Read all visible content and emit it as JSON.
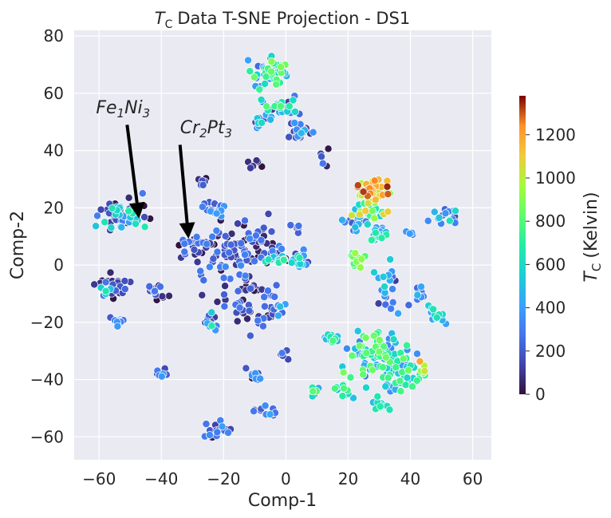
{
  "chart_data": {
    "type": "scatter",
    "title": {
      "main": "Data T-SNE Projection - DS1",
      "symbol": "T",
      "subscript": "C"
    },
    "xlabel": "Comp-1",
    "ylabel": "Comp-2",
    "xlim": [
      -68,
      66
    ],
    "ylim": [
      -68,
      82
    ],
    "xticks": [
      -60,
      -40,
      -20,
      0,
      20,
      40,
      60
    ],
    "yticks": [
      -60,
      -40,
      -20,
      0,
      20,
      40,
      60,
      80
    ],
    "grid": true,
    "background": "#eaeaf2",
    "colormap": "turbo",
    "colorbar": {
      "label": {
        "symbol": "T",
        "subscript": "C",
        "text": "(Kelvin)"
      },
      "min": 0,
      "max": 1380,
      "ticks": [
        0,
        200,
        400,
        600,
        800,
        1000,
        1200
      ]
    },
    "annotations": [
      {
        "name": "fe1ni3",
        "parts": [
          [
            "Fe",
            false
          ],
          [
            "1",
            true
          ],
          [
            "Ni",
            false
          ],
          [
            "3",
            true
          ]
        ],
        "text_pos": [
          -61,
          53
        ],
        "arrow_from": [
          -51,
          49
        ],
        "arrow_to": [
          -47.5,
          19
        ]
      },
      {
        "name": "cr2pt3",
        "parts": [
          [
            "Cr",
            false
          ],
          [
            "2",
            true
          ],
          [
            "Pt",
            false
          ],
          [
            "3",
            true
          ]
        ],
        "text_pos": [
          -34,
          46
        ],
        "arrow_from": [
          -34,
          42
        ],
        "arrow_to": [
          -31.5,
          12
        ]
      }
    ],
    "clusters": [
      {
        "cx": -5,
        "cy": 67,
        "rx": 7,
        "ry": 5,
        "n": 55,
        "tmin": 200,
        "tmax": 900
      },
      {
        "cx": -2,
        "cy": 55,
        "rx": 6,
        "ry": 4,
        "n": 25,
        "tmin": 100,
        "tmax": 800
      },
      {
        "cx": 4,
        "cy": 46,
        "rx": 4,
        "ry": 4,
        "n": 25,
        "tmin": 0,
        "tmax": 500
      },
      {
        "cx": -8,
        "cy": 50,
        "rx": 4,
        "ry": 3,
        "n": 12,
        "tmin": 0,
        "tmax": 600
      },
      {
        "cx": -52,
        "cy": 18,
        "rx": 8,
        "ry": 6,
        "n": 60,
        "tmin": 0,
        "tmax": 700
      },
      {
        "cx": -27,
        "cy": 29,
        "rx": 2,
        "ry": 2,
        "n": 8,
        "tmin": 0,
        "tmax": 300
      },
      {
        "cx": -23,
        "cy": 20,
        "rx": 4,
        "ry": 3,
        "n": 18,
        "tmin": 200,
        "tmax": 400
      },
      {
        "cx": -30,
        "cy": 7,
        "rx": 5,
        "ry": 5,
        "n": 20,
        "tmin": 0,
        "tmax": 300
      },
      {
        "cx": -15,
        "cy": 5,
        "rx": 14,
        "ry": 10,
        "n": 90,
        "tmin": 0,
        "tmax": 350
      },
      {
        "cx": -12,
        "cy": -12,
        "rx": 12,
        "ry": 10,
        "n": 55,
        "tmin": 0,
        "tmax": 300
      },
      {
        "cx": -55,
        "cy": -7,
        "rx": 5,
        "ry": 4,
        "n": 25,
        "tmin": 0,
        "tmax": 300
      },
      {
        "cx": -58,
        "cy": -9,
        "rx": 2,
        "ry": 2,
        "n": 5,
        "tmin": 500,
        "tmax": 800
      },
      {
        "cx": -54,
        "cy": -20,
        "rx": 2,
        "ry": 2,
        "n": 12,
        "tmin": 200,
        "tmax": 450
      },
      {
        "cx": -42,
        "cy": -9,
        "rx": 4,
        "ry": 3,
        "n": 15,
        "tmin": 0,
        "tmax": 300
      },
      {
        "cx": -40,
        "cy": -38,
        "rx": 2,
        "ry": 2,
        "n": 8,
        "tmin": 150,
        "tmax": 400
      },
      {
        "cx": -24,
        "cy": -20,
        "rx": 3,
        "ry": 3,
        "n": 15,
        "tmin": 0,
        "tmax": 700
      },
      {
        "cx": -3,
        "cy": -15,
        "rx": 3,
        "ry": 2,
        "n": 8,
        "tmin": 200,
        "tmax": 500
      },
      {
        "cx": 4,
        "cy": 2,
        "rx": 5,
        "ry": 4,
        "n": 25,
        "tmin": 0,
        "tmax": 700
      },
      {
        "cx": -4,
        "cy": 2,
        "rx": 3,
        "ry": 2,
        "n": 10,
        "tmin": 400,
        "tmax": 800
      },
      {
        "cx": 3,
        "cy": 13,
        "rx": 2,
        "ry": 2,
        "n": 6,
        "tmin": 0,
        "tmax": 300
      },
      {
        "cx": -1,
        "cy": -31,
        "rx": 2,
        "ry": 2,
        "n": 8,
        "tmin": 0,
        "tmax": 300
      },
      {
        "cx": -10,
        "cy": -38,
        "rx": 3,
        "ry": 3,
        "n": 12,
        "tmin": 0,
        "tmax": 400
      },
      {
        "cx": -7,
        "cy": -51,
        "rx": 4,
        "ry": 2,
        "n": 12,
        "tmin": 0,
        "tmax": 450
      },
      {
        "cx": -22,
        "cy": -58,
        "rx": 4,
        "ry": 3,
        "n": 22,
        "tmin": 0,
        "tmax": 400
      },
      {
        "cx": 28,
        "cy": 26,
        "rx": 5,
        "ry": 4,
        "n": 45,
        "tmin": 900,
        "tmax": 1350
      },
      {
        "cx": 28,
        "cy": 19,
        "rx": 6,
        "ry": 5,
        "n": 25,
        "tmin": 500,
        "tmax": 1100
      },
      {
        "cx": 22,
        "cy": 16,
        "rx": 4,
        "ry": 4,
        "n": 20,
        "tmin": 100,
        "tmax": 500
      },
      {
        "cx": 30,
        "cy": 10,
        "rx": 4,
        "ry": 4,
        "n": 25,
        "tmin": 300,
        "tmax": 700
      },
      {
        "cx": 23,
        "cy": 2,
        "rx": 3,
        "ry": 3,
        "n": 18,
        "tmin": 600,
        "tmax": 1000
      },
      {
        "cx": 33,
        "cy": -8,
        "rx": 4,
        "ry": 8,
        "n": 22,
        "tmin": 100,
        "tmax": 600
      },
      {
        "cx": 52,
        "cy": 17,
        "rx": 5,
        "ry": 3,
        "n": 16,
        "tmin": 100,
        "tmax": 650
      },
      {
        "cx": 40,
        "cy": 11,
        "rx": 1.5,
        "ry": 1.5,
        "n": 4,
        "tmin": 200,
        "tmax": 400
      },
      {
        "cx": 43,
        "cy": -10,
        "rx": 3,
        "ry": 4,
        "n": 10,
        "tmin": 200,
        "tmax": 500
      },
      {
        "cx": 48,
        "cy": -18,
        "rx": 4,
        "ry": 4,
        "n": 14,
        "tmin": 400,
        "tmax": 700
      },
      {
        "cx": 15,
        "cy": -26,
        "rx": 3,
        "ry": 2,
        "n": 12,
        "tmin": 300,
        "tmax": 800
      },
      {
        "cx": 30,
        "cy": -32,
        "rx": 10,
        "ry": 8,
        "n": 95,
        "tmin": 300,
        "tmax": 900
      },
      {
        "cx": 38,
        "cy": -40,
        "rx": 7,
        "ry": 5,
        "n": 35,
        "tmin": 300,
        "tmax": 800
      },
      {
        "cx": 44,
        "cy": -36,
        "rx": 2,
        "ry": 2,
        "n": 6,
        "tmin": 900,
        "tmax": 1200
      },
      {
        "cx": 30,
        "cy": -48,
        "rx": 3,
        "ry": 3,
        "n": 14,
        "tmin": 400,
        "tmax": 700
      },
      {
        "cx": 18,
        "cy": -44,
        "rx": 3,
        "ry": 3,
        "n": 12,
        "tmin": 450,
        "tmax": 800
      },
      {
        "cx": 10,
        "cy": -44,
        "rx": 2,
        "ry": 2,
        "n": 6,
        "tmin": 150,
        "tmax": 1000
      },
      {
        "cx": -10,
        "cy": 34,
        "rx": 2,
        "ry": 3,
        "n": 6,
        "tmin": 0,
        "tmax": 150
      },
      {
        "cx": -8,
        "cy": 10,
        "rx": 3,
        "ry": 3,
        "n": 8,
        "tmin": 0,
        "tmax": 300
      },
      {
        "cx": 12,
        "cy": 40,
        "rx": 2,
        "ry": 8,
        "n": 6,
        "tmin": 0,
        "tmax": 300
      }
    ]
  }
}
